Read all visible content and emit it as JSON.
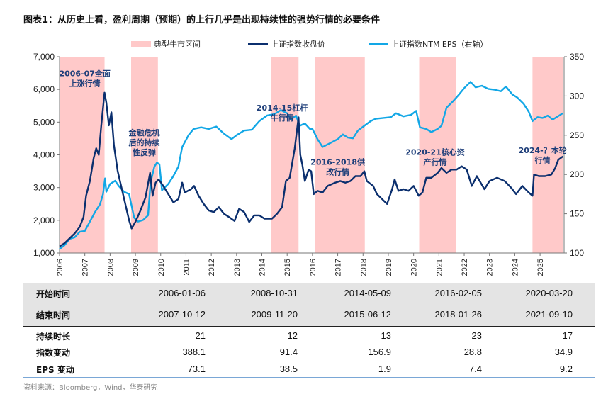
{
  "title": "图表1：从历史上看，盈利周期（预期）的上行几乎是出现持续性的强势行情的必要条件",
  "colors": {
    "index": "#0b2f6e",
    "eps": "#12a7e6",
    "shade": "#ffc9c9",
    "annotation": "#1f3f7a"
  },
  "chart_data": {
    "type": "line",
    "legend": [
      "典型牛市区间",
      "上证指数收盘价",
      "上证指数NTM EPS（右轴）"
    ],
    "legend_position": "top",
    "x_ticks": [
      "2006",
      "2007",
      "2008",
      "2009",
      "2010",
      "2011",
      "2012",
      "2013",
      "2014",
      "2015",
      "2016",
      "2017",
      "2018",
      "2019",
      "2020",
      "2021",
      "2022",
      "2023",
      "2024",
      "2025"
    ],
    "y_left": {
      "range": [
        1000,
        7000
      ],
      "ticks": [
        "1,000",
        "2,000",
        "3,000",
        "4,000",
        "5,000",
        "6,000",
        "7,000"
      ]
    },
    "y_right": {
      "range": [
        100,
        350
      ],
      "ticks": [
        "100",
        "150",
        "200",
        "250",
        "300",
        "350"
      ]
    },
    "shaded_periods": [
      [
        2006.0,
        2007.78
      ],
      [
        2008.83,
        2009.89
      ],
      [
        2014.35,
        2015.45
      ],
      [
        2016.1,
        2018.07
      ],
      [
        2020.22,
        2021.69
      ],
      [
        2024.7,
        2025.9
      ]
    ],
    "annotations": [
      {
        "lines": [
          "2006-07全面",
          "上涨行情"
        ],
        "x": 2007.0,
        "y": 6400
      },
      {
        "lines": [
          "金融危机",
          "后的持续",
          "性反弹"
        ],
        "x": 2009.35,
        "y": 4600
      },
      {
        "lines": [
          "2014-15杠杆",
          "牛行情"
        ],
        "x": 2014.8,
        "y": 5350
      },
      {
        "lines": [
          "2016-2018供",
          "改行情"
        ],
        "x": 2017.0,
        "y": 3700
      },
      {
        "lines": [
          "2020-21核心资",
          "产行情"
        ],
        "x": 2020.85,
        "y": 4000
      },
      {
        "lines": [
          "2024-？本轮",
          "行情"
        ],
        "x": 2025.1,
        "y": 4050
      }
    ],
    "series": [
      {
        "name": "上证指数收盘价",
        "axis": "left",
        "points": [
          [
            2006.0,
            1200
          ],
          [
            2006.2,
            1300
          ],
          [
            2006.4,
            1450
          ],
          [
            2006.6,
            1600
          ],
          [
            2006.8,
            1800
          ],
          [
            2006.95,
            2100
          ],
          [
            2007.05,
            2750
          ],
          [
            2007.2,
            3200
          ],
          [
            2007.35,
            3900
          ],
          [
            2007.45,
            4200
          ],
          [
            2007.55,
            4000
          ],
          [
            2007.65,
            4900
          ],
          [
            2007.78,
            5900
          ],
          [
            2007.85,
            5600
          ],
          [
            2007.95,
            4900
          ],
          [
            2008.05,
            5300
          ],
          [
            2008.15,
            4300
          ],
          [
            2008.3,
            3500
          ],
          [
            2008.45,
            3000
          ],
          [
            2008.6,
            2500
          ],
          [
            2008.75,
            2000
          ],
          [
            2008.85,
            1750
          ],
          [
            2009.0,
            1950
          ],
          [
            2009.2,
            2300
          ],
          [
            2009.4,
            2700
          ],
          [
            2009.58,
            3450
          ],
          [
            2009.68,
            2750
          ],
          [
            2009.8,
            3150
          ],
          [
            2009.92,
            3250
          ],
          [
            2010.1,
            3050
          ],
          [
            2010.3,
            2800
          ],
          [
            2010.5,
            2550
          ],
          [
            2010.7,
            2650
          ],
          [
            2010.85,
            3150
          ],
          [
            2010.95,
            2850
          ],
          [
            2011.2,
            2950
          ],
          [
            2011.32,
            3050
          ],
          [
            2011.5,
            2750
          ],
          [
            2011.7,
            2500
          ],
          [
            2011.9,
            2300
          ],
          [
            2012.1,
            2250
          ],
          [
            2012.3,
            2400
          ],
          [
            2012.5,
            2200
          ],
          [
            2012.7,
            2100
          ],
          [
            2012.92,
            1980
          ],
          [
            2013.1,
            2350
          ],
          [
            2013.3,
            2250
          ],
          [
            2013.5,
            1950
          ],
          [
            2013.7,
            2150
          ],
          [
            2013.9,
            2150
          ],
          [
            2014.1,
            2050
          ],
          [
            2014.4,
            2050
          ],
          [
            2014.6,
            2200
          ],
          [
            2014.8,
            2400
          ],
          [
            2014.95,
            3200
          ],
          [
            2015.1,
            3300
          ],
          [
            2015.3,
            4200
          ],
          [
            2015.45,
            5150
          ],
          [
            2015.52,
            4000
          ],
          [
            2015.6,
            3700
          ],
          [
            2015.7,
            3200
          ],
          [
            2015.85,
            3550
          ],
          [
            2015.95,
            3500
          ],
          [
            2016.05,
            2800
          ],
          [
            2016.2,
            2900
          ],
          [
            2016.4,
            2850
          ],
          [
            2016.6,
            3050
          ],
          [
            2016.9,
            3150
          ],
          [
            2017.1,
            3200
          ],
          [
            2017.3,
            3150
          ],
          [
            2017.5,
            3200
          ],
          [
            2017.7,
            3350
          ],
          [
            2017.9,
            3350
          ],
          [
            2018.05,
            3500
          ],
          [
            2018.15,
            3200
          ],
          [
            2018.4,
            3050
          ],
          [
            2018.55,
            2800
          ],
          [
            2018.75,
            2650
          ],
          [
            2018.95,
            2500
          ],
          [
            2019.15,
            2950
          ],
          [
            2019.25,
            3250
          ],
          [
            2019.4,
            2900
          ],
          [
            2019.6,
            2950
          ],
          [
            2019.8,
            2900
          ],
          [
            2020.0,
            3050
          ],
          [
            2020.2,
            2750
          ],
          [
            2020.35,
            2850
          ],
          [
            2020.5,
            3300
          ],
          [
            2020.7,
            3300
          ],
          [
            2020.95,
            3450
          ],
          [
            2021.1,
            3600
          ],
          [
            2021.3,
            3450
          ],
          [
            2021.5,
            3550
          ],
          [
            2021.7,
            3550
          ],
          [
            2021.9,
            3650
          ],
          [
            2022.1,
            3550
          ],
          [
            2022.3,
            3050
          ],
          [
            2022.5,
            3350
          ],
          [
            2022.8,
            2950
          ],
          [
            2023.0,
            3200
          ],
          [
            2023.3,
            3300
          ],
          [
            2023.6,
            3200
          ],
          [
            2023.85,
            3000
          ],
          [
            2024.05,
            2800
          ],
          [
            2024.3,
            3050
          ],
          [
            2024.55,
            2850
          ],
          [
            2024.7,
            2750
          ],
          [
            2024.76,
            3400
          ],
          [
            2024.95,
            3350
          ],
          [
            2025.2,
            3350
          ],
          [
            2025.45,
            3400
          ],
          [
            2025.6,
            3600
          ],
          [
            2025.72,
            3850
          ],
          [
            2025.9,
            3950
          ]
        ]
      },
      {
        "name": "上证指数NTM EPS（右轴）",
        "axis": "right",
        "points": [
          [
            2006.0,
            105
          ],
          [
            2006.2,
            110
          ],
          [
            2006.4,
            118
          ],
          [
            2006.6,
            120
          ],
          [
            2006.8,
            127
          ],
          [
            2007.0,
            128
          ],
          [
            2007.2,
            140
          ],
          [
            2007.4,
            152
          ],
          [
            2007.6,
            162
          ],
          [
            2007.72,
            175
          ],
          [
            2007.8,
            195
          ],
          [
            2007.85,
            178
          ],
          [
            2008.0,
            188
          ],
          [
            2008.2,
            192
          ],
          [
            2008.35,
            185
          ],
          [
            2008.55,
            178
          ],
          [
            2008.75,
            175
          ],
          [
            2008.85,
            160
          ],
          [
            2008.95,
            145
          ],
          [
            2009.1,
            140
          ],
          [
            2009.3,
            142
          ],
          [
            2009.5,
            148
          ],
          [
            2009.6,
            190
          ],
          [
            2009.75,
            210
          ],
          [
            2009.85,
            215
          ],
          [
            2009.95,
            213
          ],
          [
            2010.05,
            180
          ],
          [
            2010.3,
            188
          ],
          [
            2010.5,
            198
          ],
          [
            2010.7,
            210
          ],
          [
            2010.85,
            235
          ],
          [
            2011.1,
            250
          ],
          [
            2011.3,
            258
          ],
          [
            2011.6,
            260
          ],
          [
            2011.9,
            258
          ],
          [
            2012.2,
            261
          ],
          [
            2012.5,
            252
          ],
          [
            2012.8,
            245
          ],
          [
            2013.0,
            250
          ],
          [
            2013.3,
            256
          ],
          [
            2013.6,
            257
          ],
          [
            2013.9,
            268
          ],
          [
            2014.2,
            275
          ],
          [
            2014.5,
            277
          ],
          [
            2014.75,
            282
          ],
          [
            2015.0,
            278
          ],
          [
            2015.15,
            270
          ],
          [
            2015.35,
            275
          ],
          [
            2015.5,
            262
          ],
          [
            2015.7,
            265
          ],
          [
            2015.9,
            258
          ],
          [
            2016.0,
            258
          ],
          [
            2016.2,
            245
          ],
          [
            2016.4,
            235
          ],
          [
            2016.7,
            240
          ],
          [
            2017.0,
            245
          ],
          [
            2017.2,
            251
          ],
          [
            2017.4,
            247
          ],
          [
            2017.6,
            246
          ],
          [
            2017.8,
            256
          ],
          [
            2018.05,
            262
          ],
          [
            2018.3,
            268
          ],
          [
            2018.5,
            271
          ],
          [
            2018.8,
            272
          ],
          [
            2019.1,
            273
          ],
          [
            2019.3,
            278
          ],
          [
            2019.6,
            274
          ],
          [
            2019.9,
            276
          ],
          [
            2020.1,
            281
          ],
          [
            2020.25,
            260
          ],
          [
            2020.5,
            258
          ],
          [
            2020.7,
            254
          ],
          [
            2020.95,
            258
          ],
          [
            2021.1,
            262
          ],
          [
            2021.3,
            285
          ],
          [
            2021.55,
            293
          ],
          [
            2021.8,
            302
          ],
          [
            2022.0,
            310
          ],
          [
            2022.25,
            318
          ],
          [
            2022.45,
            311
          ],
          [
            2022.7,
            313
          ],
          [
            2022.95,
            309
          ],
          [
            2023.2,
            308
          ],
          [
            2023.45,
            306
          ],
          [
            2023.65,
            312
          ],
          [
            2023.9,
            302
          ],
          [
            2024.1,
            298
          ],
          [
            2024.35,
            290
          ],
          [
            2024.55,
            280
          ],
          [
            2024.7,
            268
          ],
          [
            2024.9,
            273
          ],
          [
            2025.1,
            272
          ],
          [
            2025.3,
            275
          ],
          [
            2025.5,
            270
          ],
          [
            2025.7,
            274
          ],
          [
            2025.9,
            278
          ]
        ]
      }
    ]
  },
  "table": {
    "rows": [
      {
        "label": "开始时间",
        "values": [
          "2006-01-06",
          "2008-10-31",
          "2014-05-09",
          "2016-02-05",
          "2020-03-20"
        ]
      },
      {
        "label": "结束时间",
        "values": [
          "2007-10-12",
          "2009-11-20",
          "2015-06-12",
          "2018-01-26",
          "2021-09-10"
        ]
      },
      {
        "label": "持续时长",
        "values": [
          "21",
          "12",
          "13",
          "23",
          "17"
        ]
      },
      {
        "label": "指数变动",
        "values": [
          "388.1",
          "91.4",
          "156.9",
          "28.8",
          "34.9"
        ]
      },
      {
        "label": "EPS 变动",
        "values": [
          "73.1",
          "38.5",
          "1.9",
          "7.4",
          "9.2"
        ]
      }
    ]
  },
  "source": "资料来源：Bloomberg，Wind，华泰研究"
}
